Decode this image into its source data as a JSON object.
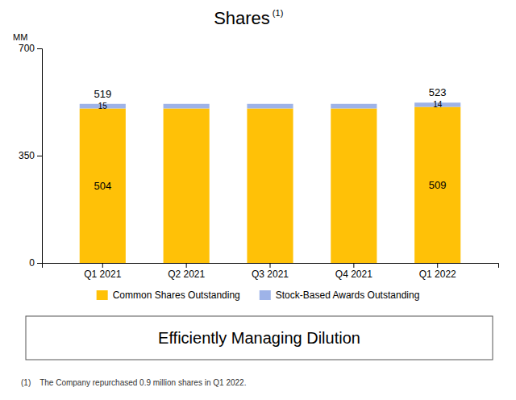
{
  "chart_data": {
    "type": "bar",
    "stacked": true,
    "title": "Shares",
    "subtitle": "Efficiently Managing Dilution",
    "ylabel": "MM",
    "annotations": [
      "(1)",
      "(1)    The Company repurchased 0.9 million shares in Q1 2022."
    ],
    "categories": [
      "Q1 2021",
      "Q2 2021",
      "Q3 2021",
      "Q4 2021",
      "Q1 2022"
    ],
    "series": [
      {
        "name": "Common Shares Outstanding",
        "color": "#FFC107",
        "values": [
          504,
          504,
          504,
          504,
          509
        ],
        "value_labels": [
          "504",
          null,
          null,
          null,
          "509"
        ]
      },
      {
        "name": "Stock-Based Awards Outstanding",
        "color": "#9EB3E8",
        "values": [
          15,
          15,
          15,
          15,
          14
        ],
        "value_labels": [
          "15",
          null,
          null,
          null,
          "14"
        ]
      }
    ],
    "totals": [
      519,
      null,
      null,
      null,
      523
    ],
    "ylim": [
      0,
      700
    ],
    "yticks": [
      0,
      350,
      700
    ],
    "grid": false,
    "legend": "bottom"
  }
}
